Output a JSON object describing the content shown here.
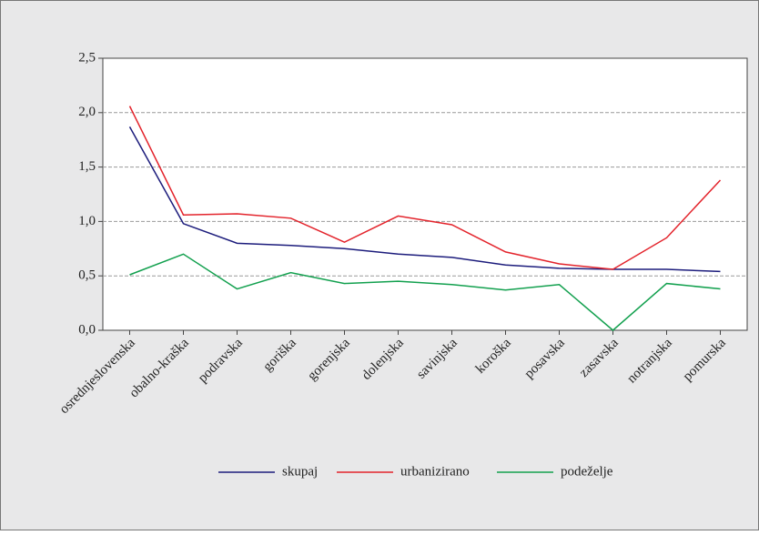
{
  "chart_data": {
    "type": "line",
    "categories": [
      "osrednjeslovenska",
      "obalno-kraška",
      "podravska",
      "goriška",
      "gorenjska",
      "dolenjska",
      "savinjska",
      "koroška",
      "posavska",
      "zasavska",
      "notranjska",
      "pomurska"
    ],
    "series": [
      {
        "name": "skupaj",
        "color": "#1c1c7c",
        "values": [
          1.87,
          0.98,
          0.8,
          0.78,
          0.75,
          0.7,
          0.67,
          0.6,
          0.57,
          0.56,
          0.56,
          0.54
        ]
      },
      {
        "name": "urbanizirano",
        "color": "#e3232b",
        "values": [
          2.06,
          1.06,
          1.07,
          1.03,
          0.81,
          1.05,
          0.97,
          0.72,
          0.61,
          0.56,
          0.85,
          1.38
        ]
      },
      {
        "name": "podeželje",
        "color": "#12a04e",
        "values": [
          0.51,
          0.7,
          0.38,
          0.53,
          0.43,
          0.45,
          0.42,
          0.37,
          0.42,
          0.0,
          0.43,
          0.38
        ]
      }
    ],
    "ylim": [
      0,
      2.5
    ],
    "yticks": [
      {
        "value": 0,
        "label": "0,0"
      },
      {
        "value": 0.5,
        "label": "0,5"
      },
      {
        "value": 1,
        "label": "1,0"
      },
      {
        "value": 1.5,
        "label": "1,5"
      },
      {
        "value": 2,
        "label": "2,0"
      },
      {
        "value": 2.5,
        "label": "2,5"
      }
    ],
    "grid": true,
    "legend": "bottom"
  }
}
